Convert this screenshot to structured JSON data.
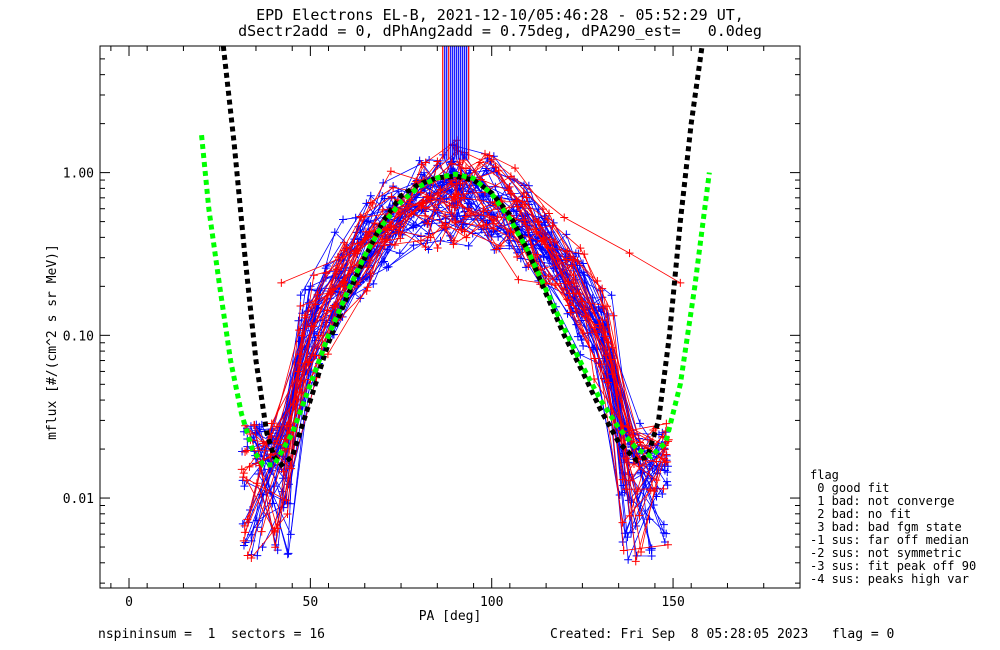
{
  "title_line1": "EPD Electrons EL-B, 2021-12-10/05:46:28 - 05:52:29 UT,",
  "title_line2": "dSectr2add = 0, dPhAng2add = 0.75deg, dPA290_est=   0.0deg",
  "footer": {
    "left": "nspininsum =  1  sectors = 16",
    "right": "Created: Fri Sep  8 05:28:05 2023   flag = 0"
  },
  "legend": {
    "title": "flag",
    "items": [
      " 0 good fit",
      " 1 bad: not converge",
      " 2 bad: no fit",
      " 3 bad: bad fgm state",
      "-1 sus: far off median",
      "-2 sus: not symmetric",
      "-3 sus: fit peak off 90",
      "-4 sus: peaks high var"
    ]
  },
  "colors": {
    "blue": "#0000ff",
    "red": "#ff0000",
    "green_fit": "#00ff00",
    "black_fit": "#000000"
  },
  "chart_data": {
    "type": "line",
    "xlabel": "PA [deg]",
    "ylabel": "mflux [#/(cm^2 s sr MeV)]",
    "xlim": [
      -8,
      185
    ],
    "ylim": [
      0.0028,
      6.0
    ],
    "yscale": "log",
    "x_ticks": [
      0,
      50,
      100,
      150
    ],
    "x_tick_labels": [
      "0",
      "50",
      "100",
      "150"
    ],
    "y_ticks": [
      0.01,
      0.1,
      1.0
    ],
    "y_tick_labels": [
      "0.01",
      "0.10",
      "1.00"
    ],
    "grid": false,
    "series": [
      {
        "style": "black-dashed-fit",
        "x": [
          26,
          29,
          32,
          35,
          38,
          40,
          42,
          45,
          50,
          55,
          60,
          65,
          70,
          75,
          80,
          85,
          90,
          95,
          100,
          105,
          110,
          115,
          120,
          125,
          130,
          135,
          140,
          143,
          146,
          149,
          152,
          155,
          158
        ],
        "values": [
          6.0,
          1.5,
          0.3,
          0.07,
          0.025,
          0.018,
          0.016,
          0.018,
          0.04,
          0.09,
          0.17,
          0.3,
          0.5,
          0.72,
          0.85,
          0.93,
          0.95,
          0.9,
          0.75,
          0.55,
          0.33,
          0.18,
          0.1,
          0.06,
          0.035,
          0.022,
          0.017,
          0.018,
          0.03,
          0.1,
          0.5,
          2.0,
          6.0
        ]
      },
      {
        "style": "green-dashed-fit",
        "x": [
          20,
          22,
          25,
          28,
          31,
          34,
          37,
          40,
          45,
          50,
          55,
          60,
          65,
          70,
          75,
          80,
          85,
          90,
          95,
          100,
          105,
          110,
          115,
          120,
          125,
          130,
          135,
          140,
          144,
          148,
          152,
          156,
          160
        ],
        "values": [
          1.7,
          0.6,
          0.2,
          0.07,
          0.033,
          0.02,
          0.016,
          0.016,
          0.025,
          0.05,
          0.1,
          0.18,
          0.31,
          0.48,
          0.66,
          0.82,
          0.93,
          0.98,
          0.92,
          0.74,
          0.52,
          0.33,
          0.19,
          0.11,
          0.065,
          0.04,
          0.027,
          0.02,
          0.018,
          0.022,
          0.05,
          0.2,
          1.0
        ]
      }
    ]
  }
}
